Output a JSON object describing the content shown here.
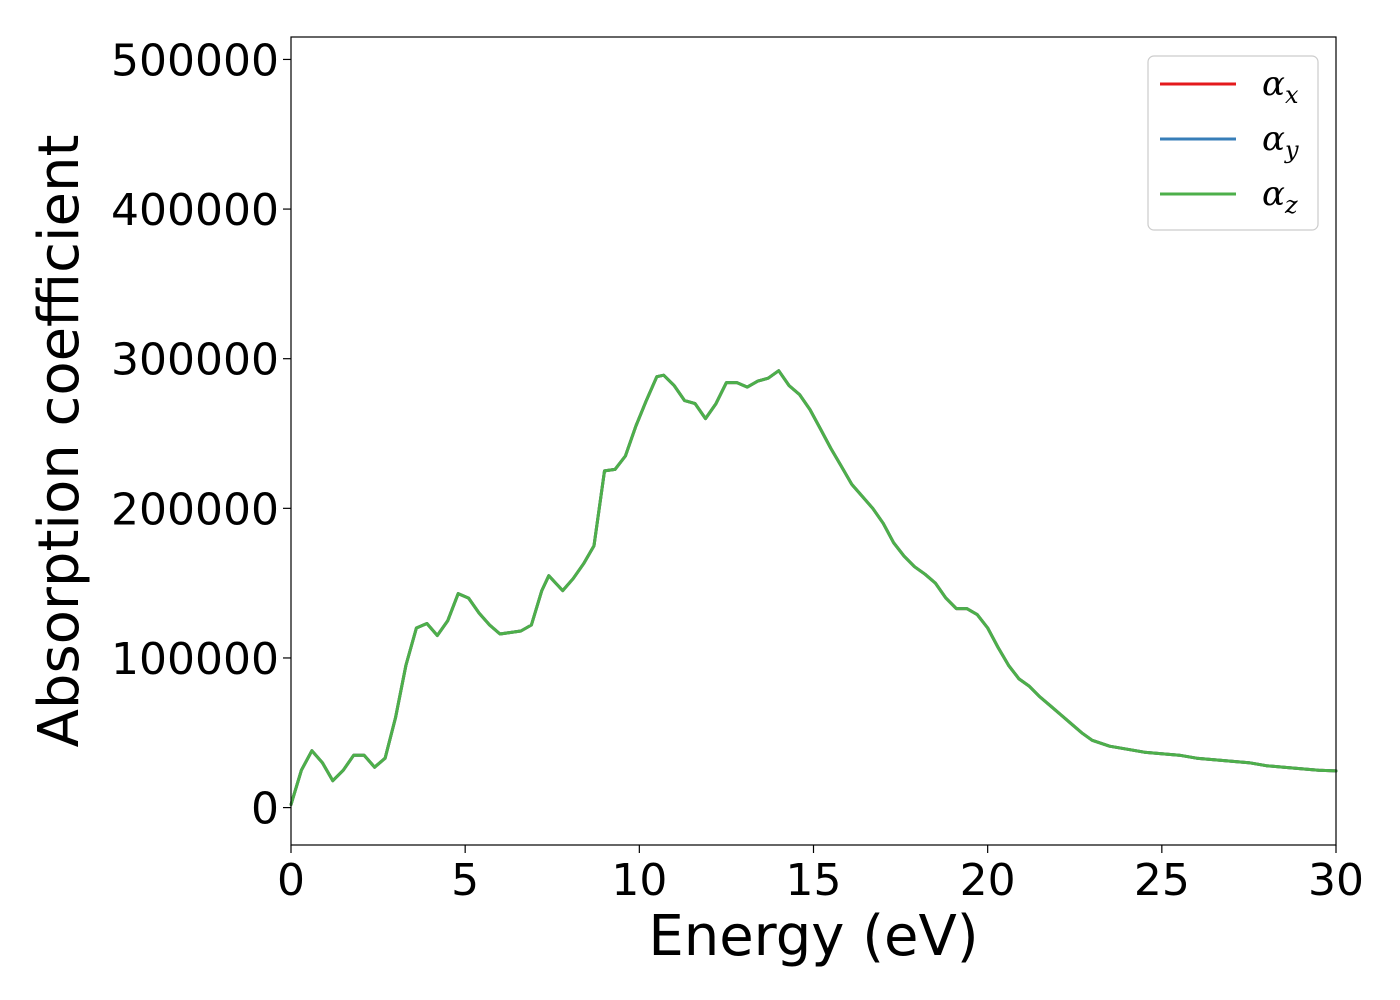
{
  "chart_data": {
    "type": "line",
    "xlabel": "Energy (eV)",
    "ylabel": "Absorption coefficient",
    "xlim": [
      0,
      30
    ],
    "ylim": [
      -25000,
      515000
    ],
    "xticks": [
      0,
      5,
      10,
      15,
      20,
      25,
      30
    ],
    "yticks": [
      0,
      100000,
      200000,
      300000,
      400000,
      500000
    ],
    "grid": false,
    "legend_position": "top-right",
    "x": [
      0,
      0.3,
      0.6,
      0.9,
      1.2,
      1.5,
      1.8,
      2.1,
      2.4,
      2.7,
      3.0,
      3.3,
      3.6,
      3.9,
      4.2,
      4.5,
      4.8,
      5.1,
      5.4,
      5.7,
      6.0,
      6.3,
      6.6,
      6.9,
      7.2,
      7.4,
      7.6,
      7.8,
      8.1,
      8.4,
      8.7,
      9.0,
      9.3,
      9.6,
      9.9,
      10.2,
      10.5,
      10.7,
      11.0,
      11.3,
      11.6,
      11.9,
      12.2,
      12.5,
      12.8,
      13.1,
      13.4,
      13.7,
      14.0,
      14.3,
      14.6,
      14.9,
      15.2,
      15.5,
      15.8,
      16.1,
      16.4,
      16.7,
      17.0,
      17.3,
      17.6,
      17.9,
      18.2,
      18.5,
      18.8,
      19.1,
      19.4,
      19.7,
      20.0,
      20.3,
      20.6,
      20.9,
      21.2,
      21.5,
      21.8,
      22.1,
      22.4,
      22.7,
      23.0,
      23.5,
      24.0,
      24.5,
      25.0,
      25.5,
      26.0,
      26.5,
      27.0,
      27.5,
      28.0,
      28.5,
      29.0,
      29.5,
      30.0
    ],
    "series": [
      {
        "name": "α_x",
        "label_main": "α",
        "label_sub": "x",
        "color": "#e41a1c",
        "values": [
          2000,
          25000,
          38000,
          30000,
          18000,
          25000,
          35000,
          35000,
          27000,
          33000,
          60000,
          95000,
          120000,
          123000,
          115000,
          125000,
          143000,
          140000,
          130000,
          122000,
          116000,
          117000,
          118000,
          122000,
          145000,
          155000,
          150000,
          145000,
          153000,
          163000,
          175000,
          225000,
          226000,
          235000,
          255000,
          272000,
          288000,
          289000,
          282000,
          272000,
          270000,
          260000,
          270000,
          284000,
          284000,
          281000,
          285000,
          287000,
          292000,
          282000,
          276000,
          266000,
          253000,
          240000,
          228000,
          216000,
          208000,
          200000,
          190000,
          177000,
          168000,
          161000,
          156000,
          150000,
          140000,
          133000,
          133000,
          129000,
          120000,
          107000,
          95000,
          86000,
          81000,
          74000,
          68000,
          62000,
          56000,
          50000,
          45000,
          41000,
          39000,
          37000,
          36000,
          35000,
          33000,
          32000,
          31000,
          30000,
          28000,
          27000,
          26000,
          25000,
          24500
        ]
      },
      {
        "name": "α_y",
        "label_main": "α",
        "label_sub": "y",
        "color": "#377eb8",
        "values": [
          2000,
          25000,
          38000,
          30000,
          18000,
          25000,
          35000,
          35000,
          27000,
          33000,
          60000,
          95000,
          120000,
          123000,
          115000,
          125000,
          143000,
          140000,
          130000,
          122000,
          116000,
          117000,
          118000,
          122000,
          145000,
          155000,
          150000,
          145000,
          153000,
          163000,
          175000,
          225000,
          226000,
          235000,
          255000,
          272000,
          288000,
          289000,
          282000,
          272000,
          270000,
          260000,
          270000,
          284000,
          284000,
          281000,
          285000,
          287000,
          292000,
          282000,
          276000,
          266000,
          253000,
          240000,
          228000,
          216000,
          208000,
          200000,
          190000,
          177000,
          168000,
          161000,
          156000,
          150000,
          140000,
          133000,
          133000,
          129000,
          120000,
          107000,
          95000,
          86000,
          81000,
          74000,
          68000,
          62000,
          56000,
          50000,
          45000,
          41000,
          39000,
          37000,
          36000,
          35000,
          33000,
          32000,
          31000,
          30000,
          28000,
          27000,
          26000,
          25000,
          24500
        ]
      },
      {
        "name": "α_z",
        "label_main": "α",
        "label_sub": "z",
        "color": "#4daf4a",
        "values": [
          2000,
          25000,
          38000,
          30000,
          18000,
          25000,
          35000,
          35000,
          27000,
          33000,
          60000,
          95000,
          120000,
          123000,
          115000,
          125000,
          143000,
          140000,
          130000,
          122000,
          116000,
          117000,
          118000,
          122000,
          145000,
          155000,
          150000,
          145000,
          153000,
          163000,
          175000,
          225000,
          226000,
          235000,
          255000,
          272000,
          288000,
          289000,
          282000,
          272000,
          270000,
          260000,
          270000,
          284000,
          284000,
          281000,
          285000,
          287000,
          292000,
          282000,
          276000,
          266000,
          253000,
          240000,
          228000,
          216000,
          208000,
          200000,
          190000,
          177000,
          168000,
          161000,
          156000,
          150000,
          140000,
          133000,
          133000,
          129000,
          120000,
          107000,
          95000,
          86000,
          81000,
          74000,
          68000,
          62000,
          56000,
          50000,
          45000,
          41000,
          39000,
          37000,
          36000,
          35000,
          33000,
          32000,
          31000,
          30000,
          28000,
          27000,
          26000,
          25000,
          24500
        ]
      }
    ]
  }
}
